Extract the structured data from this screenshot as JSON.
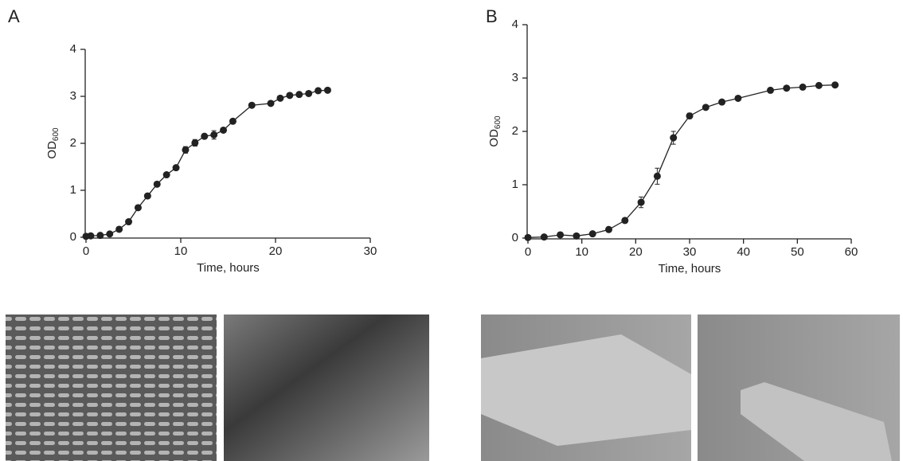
{
  "chart_data": [
    {
      "type": "line",
      "panel": "A",
      "xlabel": "Time, hours",
      "ylabel": "OD",
      "ylabel_sub": "600",
      "xlim": [
        0,
        30
      ],
      "ylim": [
        0,
        4
      ],
      "xticks": [
        0,
        10,
        20,
        30
      ],
      "yticks": [
        0,
        1,
        2,
        3,
        4
      ],
      "color": "#222222",
      "x": [
        0,
        0.5,
        1.5,
        2.5,
        3.5,
        4.5,
        5.5,
        6.5,
        7.5,
        8.5,
        9.5,
        10.5,
        11.5,
        12.5,
        13.5,
        14.5,
        15.5,
        17.5,
        19.5,
        20.5,
        21.5,
        22.5,
        23.5,
        24.5,
        25.5
      ],
      "values": [
        0.02,
        0.03,
        0.04,
        0.07,
        0.17,
        0.33,
        0.63,
        0.88,
        1.13,
        1.33,
        1.48,
        1.86,
        2.01,
        2.15,
        2.18,
        2.28,
        2.47,
        2.81,
        2.85,
        2.96,
        3.02,
        3.04,
        3.06,
        3.12,
        3.13
      ],
      "errors": [
        0.01,
        0.01,
        0.01,
        0.01,
        0.02,
        0.02,
        0.03,
        0.03,
        0.03,
        0.03,
        0.04,
        0.07,
        0.07,
        0.05,
        0.09,
        0.04,
        0.04,
        0.03,
        0.03,
        0.03,
        0.03,
        0.03,
        0.03,
        0.03,
        0.03
      ]
    },
    {
      "type": "line",
      "panel": "B",
      "xlabel": "Time, hours",
      "ylabel": "OD",
      "ylabel_sub": "600",
      "xlim": [
        0,
        60
      ],
      "ylim": [
        0,
        4
      ],
      "xticks": [
        0,
        10,
        20,
        30,
        40,
        50,
        60
      ],
      "yticks": [
        0,
        1,
        2,
        3,
        4
      ],
      "color": "#222222",
      "x": [
        0,
        3,
        6,
        9,
        12,
        15,
        18,
        21,
        24,
        27,
        30,
        33,
        36,
        39,
        45,
        48,
        51,
        54,
        57
      ],
      "values": [
        0.01,
        0.02,
        0.06,
        0.04,
        0.08,
        0.16,
        0.33,
        0.67,
        1.16,
        1.88,
        2.29,
        2.45,
        2.55,
        2.62,
        2.77,
        2.81,
        2.83,
        2.86,
        2.87
      ],
      "errors": [
        0.01,
        0.01,
        0.02,
        0.01,
        0.02,
        0.02,
        0.04,
        0.1,
        0.15,
        0.12,
        0.05,
        0.04,
        0.04,
        0.03,
        0.03,
        0.03,
        0.03,
        0.03,
        0.03
      ]
    }
  ]
}
